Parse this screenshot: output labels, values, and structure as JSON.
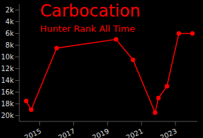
{
  "chart_data": {
    "type": "line",
    "title": "Carbocation",
    "subtitle": "Hunter Rank All Time",
    "x": [
      2014.2,
      2014.5,
      2016.0,
      2019.5,
      2020.5,
      2021.8,
      2022.0,
      2022.5,
      2023.2,
      2024.0
    ],
    "values": [
      17500,
      19000,
      8500,
      7000,
      10500,
      19500,
      17000,
      15000,
      6000,
      6000
    ],
    "color": "#ff0000",
    "marker": "circle",
    "xlim": [
      2013.8,
      2024.3
    ],
    "xticks": [
      2015,
      2017,
      2019,
      2021,
      2023
    ],
    "ylim": [
      21000,
      1000
    ],
    "yticks": [
      {
        "value": 2000,
        "label": "2k"
      },
      {
        "value": 4000,
        "label": "4k"
      },
      {
        "value": 6000,
        "label": "6k"
      },
      {
        "value": 8000,
        "label": "8k"
      },
      {
        "value": 10000,
        "label": "10k"
      },
      {
        "value": 12000,
        "label": "12k"
      },
      {
        "value": 14000,
        "label": "14k"
      },
      {
        "value": 16000,
        "label": "16k"
      },
      {
        "value": 18000,
        "label": "18k"
      },
      {
        "value": 20000,
        "label": "20k"
      }
    ],
    "grid": false
  }
}
